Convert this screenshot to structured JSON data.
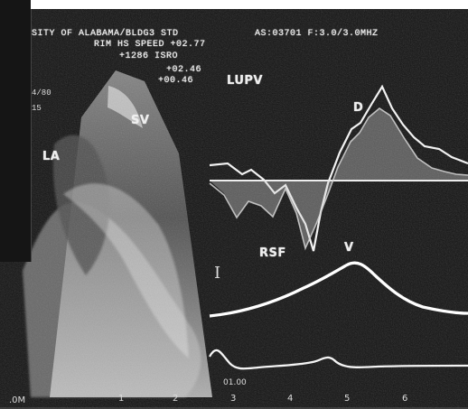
{
  "header": {
    "line1": "SITY OF ALABAMA/BLDG3 STD",
    "line2": "AS:03701 F:3.0/3.0MHZ",
    "line3": "RIM HS SPEED +02.77",
    "line4": "+1286 ISRO",
    "line5": "+02.46",
    "line6": "+00.46",
    "line7": "LUPV"
  },
  "left_panel": {
    "a": "4/80",
    "b": "15",
    "c": "LA",
    "d": "SV"
  },
  "waveform_labels": {
    "d": "D",
    "rsf": "RSF",
    "v": "V"
  },
  "bottom_scale": {
    "left": ".0M",
    "values": [
      "1",
      "2",
      "3",
      "4",
      "5",
      "6"
    ],
    "small": "01.00"
  },
  "icons": {
    "marker": "vertical-marker-icon"
  }
}
